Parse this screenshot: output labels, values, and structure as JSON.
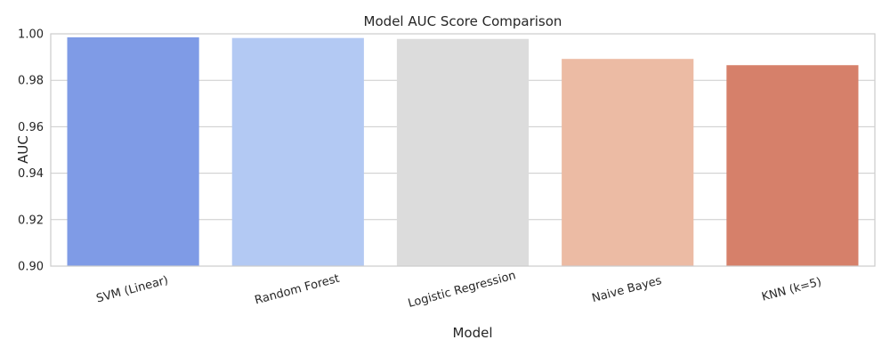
{
  "chart_data": {
    "type": "bar",
    "title": "Model AUC Score Comparison",
    "xlabel": "Model",
    "ylabel": "AUC",
    "categories": [
      "SVM (Linear)",
      "Random Forest",
      "Logistic Regression",
      "Naive Bayes",
      "KNN (k=5)"
    ],
    "values": [
      0.9985,
      0.9982,
      0.9978,
      0.9892,
      0.9865
    ],
    "ylim": [
      0.9,
      1.0
    ],
    "yticks": [
      "0.90",
      "0.92",
      "0.94",
      "0.96",
      "0.98",
      "1.00"
    ],
    "grid": true,
    "colors": [
      "#7f9be6",
      "#b3c9f3",
      "#dcdcdc",
      "#ecbba4",
      "#d6806a"
    ]
  }
}
